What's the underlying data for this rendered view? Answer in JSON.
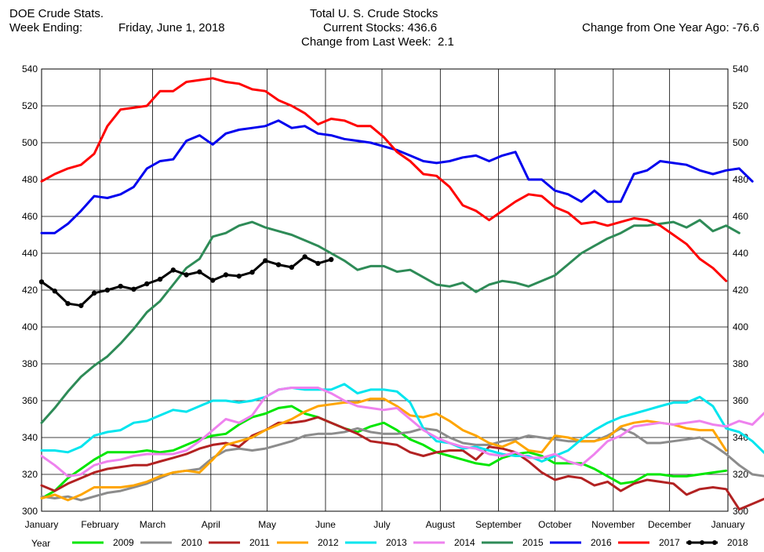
{
  "header": {
    "left_line1": "DOE Crude Stats.",
    "left_line2_label": "Week Ending:",
    "left_line2_date": "Friday, June 1, 2018",
    "center_title": "Total U. S. Crude Stocks",
    "current_stocks_label": "Current Stocks:",
    "current_stocks_value": "436.6",
    "change_week_label": "Change from Last Week:",
    "change_week_value": "2.1",
    "change_year_label": "Change from One Year Ago:",
    "change_year_value": "-76.6"
  },
  "legend_title": "Year",
  "chart_data": {
    "type": "line",
    "title": "Total U. S. Crude Stocks",
    "ylim": [
      300,
      540
    ],
    "yticks": [
      300,
      320,
      340,
      360,
      380,
      400,
      420,
      440,
      460,
      480,
      500,
      520,
      540
    ],
    "xlim": [
      0,
      52
    ],
    "xticks": [
      {
        "label": "January",
        "x": 0
      },
      {
        "label": "February",
        "x": 4.43
      },
      {
        "label": "March",
        "x": 8.43
      },
      {
        "label": "April",
        "x": 12.86
      },
      {
        "label": "May",
        "x": 17.14
      },
      {
        "label": "June",
        "x": 21.57
      },
      {
        "label": "July",
        "x": 25.86
      },
      {
        "label": "August",
        "x": 30.29
      },
      {
        "label": "September",
        "x": 34.71
      },
      {
        "label": "October",
        "x": 39
      },
      {
        "label": "November",
        "x": 43.43
      },
      {
        "label": "December",
        "x": 47.71
      },
      {
        "label": "January",
        "x": 52.14
      }
    ],
    "legend_position": "bottom",
    "grid": true,
    "series": [
      {
        "name": "2009",
        "color": "#00e600",
        "marker": false,
        "values": [
          307,
          311,
          318,
          323,
          328,
          332,
          332,
          332,
          333,
          332,
          333,
          336,
          339,
          341,
          342,
          347,
          351,
          353,
          356,
          357,
          353,
          351,
          348,
          345,
          343,
          346,
          348,
          344,
          339,
          336,
          332,
          330,
          328,
          326,
          325,
          329,
          331,
          332,
          330,
          326,
          326,
          326,
          323,
          319,
          315,
          316,
          320,
          320,
          319,
          319,
          320,
          321,
          322
        ]
      },
      {
        "name": "2010",
        "color": "#8c8c8c",
        "marker": false,
        "values": [
          308,
          307,
          308,
          306,
          308,
          310,
          311,
          313,
          315,
          318,
          321,
          322,
          323,
          329,
          333,
          334,
          333,
          334,
          336,
          338,
          341,
          342,
          342,
          343,
          345,
          343,
          342,
          342,
          343,
          345,
          344,
          340,
          337,
          336,
          336,
          338,
          339,
          341,
          340,
          339,
          338,
          338,
          338,
          341,
          345,
          342,
          337,
          337,
          338,
          339,
          340,
          336,
          331,
          325,
          320,
          319,
          317,
          314
        ]
      },
      {
        "name": "2011",
        "color": "#b22222",
        "marker": false,
        "values": [
          314,
          311,
          315,
          318,
          321,
          323,
          324,
          325,
          325,
          327,
          329,
          331,
          334,
          336,
          337,
          335,
          341,
          344,
          348,
          348,
          349,
          351,
          348,
          345,
          342,
          338,
          337,
          336,
          332,
          330,
          332,
          333,
          333,
          328,
          335,
          334,
          332,
          327,
          321,
          317,
          319,
          318,
          314,
          316,
          311,
          315,
          317,
          316,
          315,
          309,
          312,
          313,
          312,
          301,
          304,
          307
        ]
      },
      {
        "name": "2012",
        "color": "#ffa500",
        "marker": false,
        "values": [
          307,
          309,
          306,
          309,
          313,
          313,
          313,
          314,
          316,
          319,
          321,
          322,
          321,
          328,
          336,
          338,
          340,
          344,
          347,
          350,
          354,
          357,
          358,
          359,
          359,
          361,
          361,
          357,
          352,
          351,
          353,
          349,
          344,
          341,
          337,
          335,
          338,
          333,
          332,
          341,
          340,
          338,
          338,
          340,
          346,
          348,
          349,
          348,
          347,
          345,
          344,
          344,
          333
        ]
      },
      {
        "name": "2013",
        "color": "#00e5ee",
        "marker": false,
        "values": [
          333,
          333,
          332,
          335,
          341,
          343,
          344,
          348,
          349,
          352,
          355,
          354,
          357,
          360,
          360,
          359,
          360,
          362,
          366,
          367,
          366,
          366,
          366,
          369,
          364,
          366,
          366,
          365,
          359,
          345,
          338,
          337,
          334,
          335,
          333,
          331,
          330,
          330,
          327,
          330,
          333,
          339,
          344,
          348,
          351,
          353,
          355,
          357,
          359,
          359,
          362,
          357,
          345,
          343,
          338,
          331
        ]
      },
      {
        "name": "2014",
        "color": "#ee82ee",
        "marker": false,
        "values": [
          330,
          325,
          319,
          320,
          325,
          327,
          328,
          330,
          331,
          331,
          331,
          333,
          338,
          344,
          350,
          348,
          352,
          362,
          366,
          367,
          367,
          367,
          364,
          360,
          357,
          356,
          355,
          356,
          350,
          344,
          340,
          337,
          335,
          334,
          331,
          330,
          332,
          329,
          329,
          331,
          327,
          325,
          331,
          338,
          341,
          346,
          347,
          348,
          347,
          348,
          349,
          347,
          346,
          349,
          347,
          354,
          353
        ]
      },
      {
        "name": "2015",
        "color": "#2e8b57",
        "marker": false,
        "values": [
          348,
          356,
          365,
          373,
          379,
          384,
          391,
          399,
          408,
          414,
          423,
          432,
          437,
          449,
          451,
          455,
          457,
          454,
          452,
          450,
          447,
          444,
          440,
          436,
          431,
          433,
          433,
          430,
          431,
          427,
          423,
          422,
          424,
          419,
          423,
          425,
          424,
          422,
          425,
          428,
          434,
          440,
          444,
          448,
          451,
          455,
          455,
          456,
          457,
          454,
          458,
          452,
          455,
          451
        ]
      },
      {
        "name": "2016",
        "color": "#0000ee",
        "marker": false,
        "values": [
          451,
          451,
          456,
          463,
          471,
          470,
          472,
          476,
          486,
          490,
          491,
          501,
          504,
          499,
          505,
          507,
          508,
          509,
          512,
          508,
          509,
          505,
          504,
          502,
          501,
          500,
          498,
          496,
          493,
          490,
          489,
          490,
          492,
          493,
          490,
          493,
          495,
          480,
          480,
          474,
          472,
          468,
          474,
          468,
          468,
          483,
          485,
          490,
          489,
          488,
          485,
          483,
          485,
          486,
          479
        ]
      },
      {
        "name": "2017",
        "color": "#ff0000",
        "marker": false,
        "values": [
          479,
          483,
          486,
          488,
          494,
          509,
          518,
          519,
          520,
          528,
          528,
          533,
          534,
          535,
          533,
          532,
          529,
          528,
          523,
          520,
          516,
          510,
          513,
          512,
          509,
          509,
          503,
          495,
          490,
          483,
          482,
          476,
          466,
          463,
          458,
          463,
          468,
          472,
          471,
          465,
          462,
          456,
          457,
          455,
          457,
          459,
          458,
          455,
          450,
          445,
          437,
          432,
          425
        ]
      },
      {
        "name": "2018",
        "color": "#000000",
        "marker": true,
        "values": [
          424.5,
          419.5,
          412.7,
          411.6,
          418.4,
          420.0,
          422.1,
          420.5,
          423.4,
          425.9,
          430.9,
          428.3,
          429.9,
          425.3,
          428.3,
          427.6,
          429.7,
          436.0,
          433.8,
          432.4,
          438.1,
          434.5,
          436.6
        ]
      }
    ]
  }
}
